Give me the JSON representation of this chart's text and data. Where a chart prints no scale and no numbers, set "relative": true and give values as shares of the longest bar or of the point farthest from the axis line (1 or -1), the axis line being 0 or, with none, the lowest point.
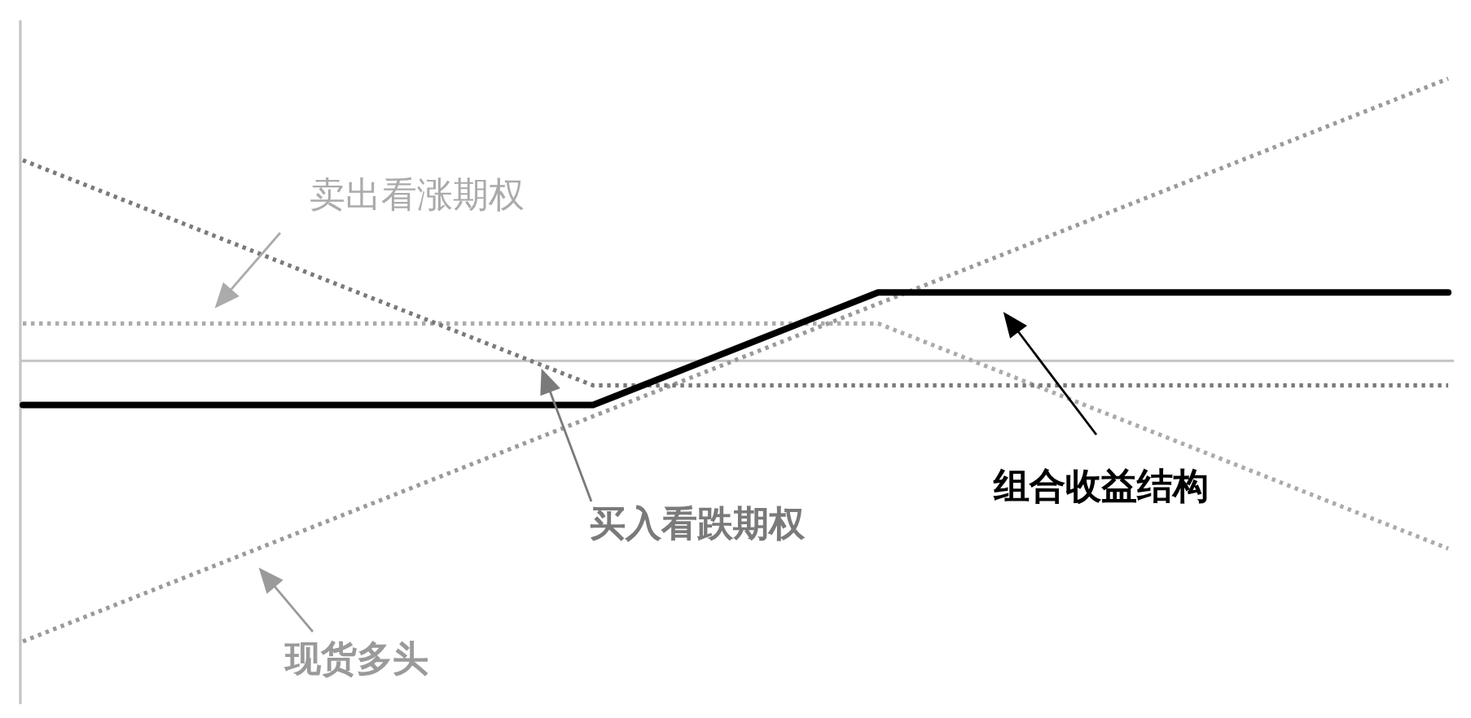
{
  "chart_data": {
    "type": "line",
    "relative": true,
    "categories": [
      null,
      null,
      null,
      null,
      null,
      null
    ],
    "series": [
      {
        "name": "现货多头",
        "color": "#9a9a9a",
        "line_style": "dotted",
        "values": [
          -1,
          -0.6,
          -0.2,
          0.2,
          0.6,
          1
        ]
      },
      {
        "name": "卖出看涨期权",
        "color": "#ababab",
        "line_style": "dotted",
        "values": [
          0.13,
          0.13,
          0.13,
          0.13,
          -0.27,
          -0.67
        ]
      },
      {
        "name": "买入看跌期权",
        "color": "#7a7a7a",
        "line_style": "dotted",
        "values": [
          0.71,
          0.31,
          -0.09,
          -0.09,
          -0.09,
          -0.09
        ]
      },
      {
        "name": "组合收益结构",
        "color": "#000000",
        "line_style": "solid",
        "values": [
          -0.16,
          -0.16,
          -0.16,
          0.24,
          0.24,
          0.24
        ]
      }
    ]
  }
}
